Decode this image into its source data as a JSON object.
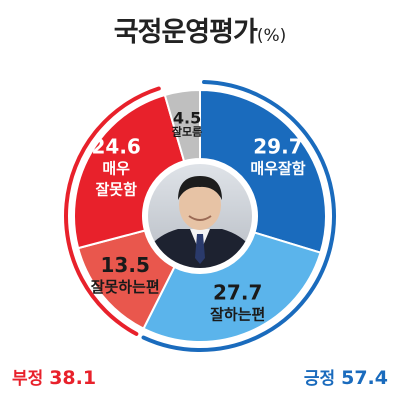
{
  "title": {
    "main": "국정운영평가",
    "unit": "(%)"
  },
  "colors": {
    "strong_pos": "#1a6bbd",
    "weak_pos": "#5bb4eb",
    "weak_neg": "#e9574d",
    "strong_neg": "#e8212b",
    "unknown": "#bfbfbf"
  },
  "chart_data": {
    "type": "pie",
    "donut": true,
    "categories": [
      "매우잘함",
      "잘하는편",
      "잘못하는편",
      "매우 잘못함",
      "잘모름"
    ],
    "values": [
      29.7,
      27.7,
      13.5,
      24.6,
      4.5
    ],
    "labels": [
      {
        "value": "29.7",
        "lines": [
          "매우잘함"
        ]
      },
      {
        "value": "27.7",
        "lines": [
          "잘하는편"
        ]
      },
      {
        "value": "13.5",
        "lines": [
          "잘못하는편"
        ]
      },
      {
        "value": "24.6",
        "lines": [
          "매우",
          "잘못함"
        ]
      },
      {
        "value": "4.5",
        "lines": [
          "잘모름"
        ]
      }
    ],
    "totals": {
      "positive": {
        "label": "긍정",
        "value": "57.4"
      },
      "negative": {
        "label": "부정",
        "value": "38.1"
      }
    }
  }
}
